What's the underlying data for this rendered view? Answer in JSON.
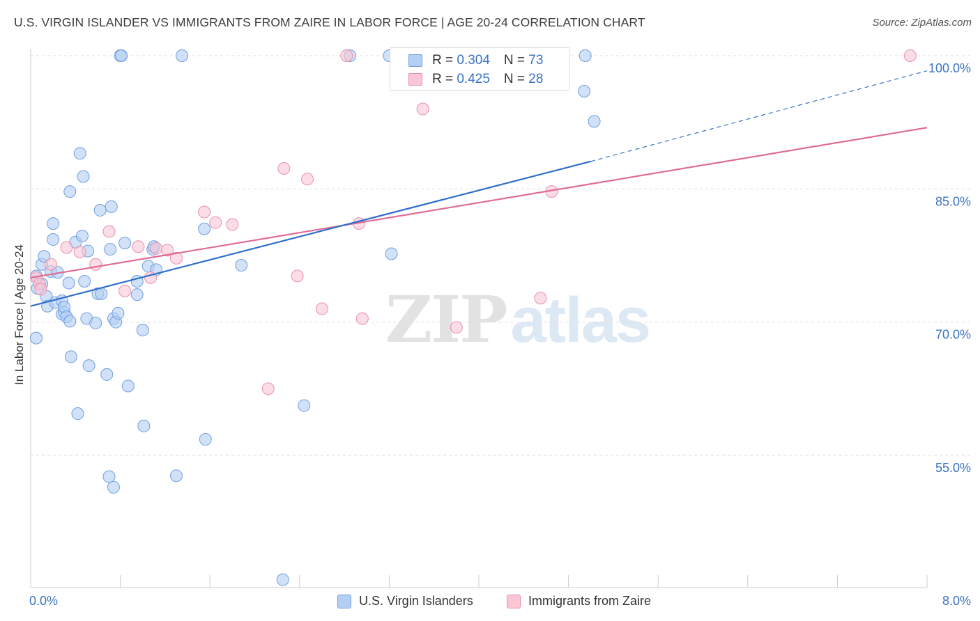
{
  "header": {
    "title": "U.S. VIRGIN ISLANDER VS IMMIGRANTS FROM ZAIRE IN LABOR FORCE | AGE 20-24 CORRELATION CHART",
    "source": "Source: ZipAtlas.com"
  },
  "watermark": {
    "zip": "ZIP",
    "atlas": "atlas"
  },
  "legend_top": {
    "rows": [
      {
        "r_label": "R = ",
        "r_value": "0.304",
        "n_label": "N = ",
        "n_value": "73"
      },
      {
        "r_label": "R = ",
        "r_value": "0.425",
        "n_label": "N = ",
        "n_value": "28"
      }
    ]
  },
  "legend_bottom": {
    "items": [
      {
        "label": "U.S. Virgin Islanders"
      },
      {
        "label": "Immigrants from Zaire"
      }
    ]
  },
  "colors": {
    "blue_fill": "#b3cff3",
    "blue_stroke": "#6f9ee0",
    "blue_line": "#2f6fcb",
    "pink_fill": "#f9c6d4",
    "pink_stroke": "#e98fab",
    "pink_line": "#e06b96",
    "axis_label": "#3a73c4",
    "grid": "#dddddd"
  },
  "chart_data": {
    "type": "scatter",
    "title": "U.S. VIRGIN ISLANDER VS IMMIGRANTS FROM ZAIRE IN LABOR FORCE | AGE 20-24 CORRELATION CHART",
    "xlabel": "",
    "ylabel": "In Labor Force | Age 20-24",
    "xlim": [
      0.0,
      8.0
    ],
    "ylim": [
      40.0,
      103.0
    ],
    "x_tick_labels": [
      {
        "value": 0.0,
        "label": "0.0%"
      },
      {
        "value": 8.0,
        "label": "8.0%"
      }
    ],
    "y_tick_labels": [
      {
        "value": 100.0,
        "label": "100.0%"
      },
      {
        "value": 85.0,
        "label": "85.0%"
      },
      {
        "value": 70.0,
        "label": "70.0%"
      },
      {
        "value": 55.0,
        "label": "55.0%"
      }
    ],
    "y_gridlines": [
      100.0,
      85.0,
      70.0,
      55.0
    ],
    "x_minor_ticks": [
      0.8,
      1.6,
      2.4,
      3.2,
      4.0,
      4.8,
      5.6,
      6.4,
      7.2,
      8.0
    ],
    "legend_position": "top-center",
    "series": [
      {
        "name": "U.S. Virgin Islanders",
        "R": 0.304,
        "N": 73,
        "points": [
          [
            0.05,
            75.2
          ],
          [
            0.06,
            73.8
          ],
          [
            0.1,
            74.3
          ],
          [
            0.05,
            68.2
          ],
          [
            0.1,
            76.5
          ],
          [
            0.12,
            77.4
          ],
          [
            0.14,
            72.9
          ],
          [
            0.15,
            71.8
          ],
          [
            0.18,
            75.7
          ],
          [
            0.2,
            79.3
          ],
          [
            0.2,
            81.1
          ],
          [
            0.22,
            72.2
          ],
          [
            0.24,
            75.6
          ],
          [
            0.28,
            70.9
          ],
          [
            0.3,
            71.1
          ],
          [
            0.28,
            72.4
          ],
          [
            0.3,
            71.7
          ],
          [
            0.32,
            70.6
          ],
          [
            0.34,
            74.4
          ],
          [
            0.35,
            84.7
          ],
          [
            0.36,
            66.1
          ],
          [
            0.35,
            70.1
          ],
          [
            0.4,
            79.0
          ],
          [
            0.42,
            59.7
          ],
          [
            0.44,
            89.0
          ],
          [
            0.46,
            79.7
          ],
          [
            0.47,
            86.4
          ],
          [
            0.48,
            74.6
          ],
          [
            0.5,
            70.4
          ],
          [
            0.51,
            78.0
          ],
          [
            0.52,
            65.1
          ],
          [
            0.58,
            69.9
          ],
          [
            0.6,
            73.2
          ],
          [
            0.62,
            82.6
          ],
          [
            0.63,
            73.2
          ],
          [
            0.68,
            64.1
          ],
          [
            0.7,
            52.6
          ],
          [
            0.72,
            83.0
          ],
          [
            0.71,
            78.2
          ],
          [
            0.74,
            51.4
          ],
          [
            0.74,
            70.4
          ],
          [
            0.76,
            70.0
          ],
          [
            0.78,
            71.0
          ],
          [
            0.8,
            100.0
          ],
          [
            0.81,
            100.0
          ],
          [
            0.84,
            78.9
          ],
          [
            0.87,
            62.8
          ],
          [
            0.95,
            74.6
          ],
          [
            0.95,
            73.1
          ],
          [
            1.0,
            69.1
          ],
          [
            1.01,
            58.3
          ],
          [
            1.05,
            76.3
          ],
          [
            1.09,
            78.2
          ],
          [
            1.1,
            78.5
          ],
          [
            1.12,
            75.9
          ],
          [
            1.3,
            52.7
          ],
          [
            1.35,
            100.0
          ],
          [
            1.55,
            80.5
          ],
          [
            1.56,
            56.8
          ],
          [
            1.88,
            76.4
          ],
          [
            2.25,
            41.0
          ],
          [
            2.44,
            60.6
          ],
          [
            2.85,
            100.0
          ],
          [
            3.2,
            100.0
          ],
          [
            3.22,
            77.7
          ],
          [
            4.95,
            100.0
          ],
          [
            4.94,
            96.0
          ],
          [
            5.03,
            92.6
          ]
        ]
      },
      {
        "name": "Immigrants from Zaire",
        "R": 0.425,
        "N": 28,
        "points": [
          [
            0.05,
            75.0
          ],
          [
            0.08,
            74.3
          ],
          [
            0.09,
            73.7
          ],
          [
            0.18,
            76.5
          ],
          [
            0.32,
            78.4
          ],
          [
            0.44,
            77.9
          ],
          [
            0.58,
            76.5
          ],
          [
            0.7,
            80.2
          ],
          [
            0.84,
            73.5
          ],
          [
            0.96,
            78.5
          ],
          [
            1.07,
            75.0
          ],
          [
            1.12,
            78.3
          ],
          [
            1.22,
            78.1
          ],
          [
            1.3,
            77.2
          ],
          [
            1.55,
            82.4
          ],
          [
            1.65,
            81.2
          ],
          [
            1.8,
            81.0
          ],
          [
            2.12,
            62.5
          ],
          [
            2.26,
            87.3
          ],
          [
            2.38,
            75.2
          ],
          [
            2.47,
            86.1
          ],
          [
            2.6,
            71.5
          ],
          [
            2.82,
            100.0
          ],
          [
            2.96,
            70.4
          ],
          [
            2.93,
            81.1
          ],
          [
            3.5,
            94.0
          ],
          [
            3.8,
            69.4
          ],
          [
            4.55,
            72.7
          ],
          [
            4.65,
            84.7
          ],
          [
            7.85,
            100.0
          ]
        ]
      }
    ],
    "trendlines": [
      {
        "series": "U.S. Virgin Islanders",
        "from": [
          0.0,
          71.8
        ],
        "to": [
          5.0,
          88.1
        ],
        "extended_to": [
          8.0,
          98.3
        ],
        "extension_style": "dashed"
      },
      {
        "series": "Immigrants from Zaire",
        "from": [
          0.0,
          75.0
        ],
        "to": [
          8.0,
          91.9
        ]
      }
    ]
  }
}
